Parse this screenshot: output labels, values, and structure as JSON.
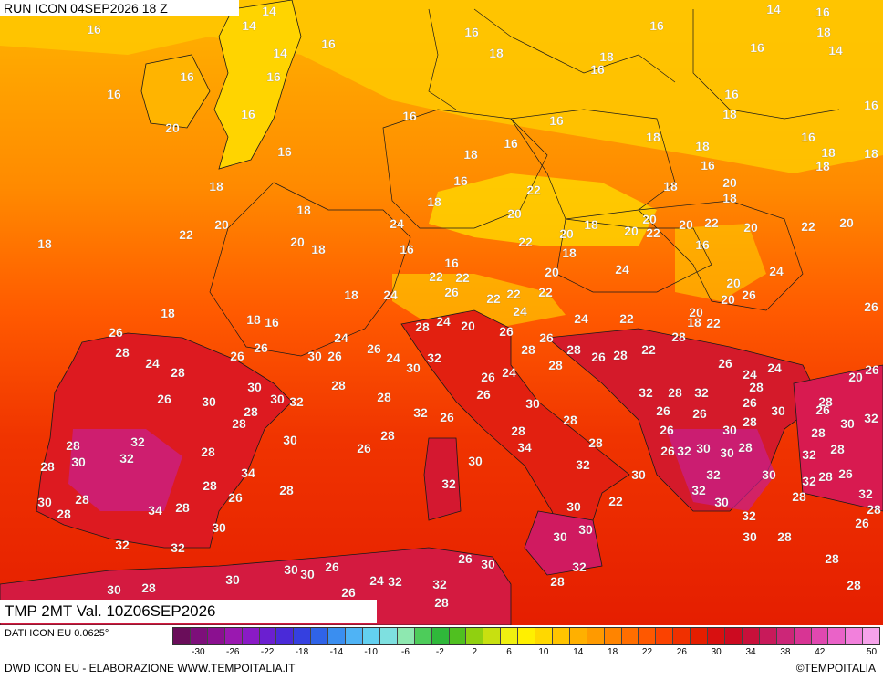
{
  "run_label": "RUN ICON 04SEP2026 18 Z",
  "validity_label": "TMP 2MT Val. 10Z06SEP2026",
  "data_source": "DATI ICON EU 0.0625°",
  "credit": "DWD ICON EU - ELABORAZIONE WWW.TEMPOITALIA.IT",
  "brand": "©TEMPOITALIA",
  "legend": {
    "tick_labels": [
      "-30",
      "-26",
      "-22",
      "-18",
      "-14",
      "-10",
      "-6",
      "-2",
      "2",
      "6",
      "10",
      "14",
      "18",
      "22",
      "26",
      "30",
      "34",
      "38",
      "42",
      "50"
    ],
    "colors": [
      "#6a0d5a",
      "#7d0f7a",
      "#8b1090",
      "#9a18b0",
      "#8a1ac6",
      "#6b1fd0",
      "#4a2ad8",
      "#3540e0",
      "#2f63e8",
      "#3a8ef0",
      "#4fb3f5",
      "#63d0f0",
      "#7ee0e0",
      "#8ee8b0",
      "#4dcc5a",
      "#2fb83a",
      "#50c020",
      "#90d010",
      "#c8e010",
      "#f0f010",
      "#fff000",
      "#ffd800",
      "#ffc400",
      "#ffb000",
      "#ff9a00",
      "#ff8400",
      "#ff6e00",
      "#ff5800",
      "#fb4200",
      "#f03000",
      "#e51e00",
      "#d81010",
      "#cc0a20",
      "#c8103a",
      "#c81a5a",
      "#cc2678",
      "#d83494",
      "#e048b0",
      "#ea62c8",
      "#f280dc",
      "#f6a2ea"
    ]
  },
  "temperature_labels": [
    "14",
    "16",
    "14",
    "14",
    "16",
    "16",
    "14",
    "16",
    "18",
    "14",
    "16",
    "18",
    "18",
    "16",
    "16",
    "16",
    "16",
    "16",
    "16",
    "16",
    "16",
    "20",
    "16",
    "16",
    "18",
    "18",
    "16",
    "16",
    "18",
    "18",
    "18",
    "16",
    "18",
    "16",
    "18",
    "18",
    "16",
    "18",
    "20",
    "22",
    "18",
    "18",
    "18",
    "20",
    "20",
    "18",
    "20",
    "20",
    "20",
    "22",
    "22",
    "20",
    "24",
    "22",
    "20",
    "22",
    "20",
    "16",
    "18",
    "20",
    "22",
    "18",
    "16",
    "18",
    "24",
    "20",
    "16",
    "24",
    "22",
    "22",
    "24",
    "22",
    "26",
    "22",
    "20",
    "22",
    "26",
    "26",
    "18",
    "18",
    "18",
    "16",
    "24",
    "20",
    "20",
    "18",
    "24",
    "22",
    "22",
    "24",
    "20",
    "28",
    "26",
    "26",
    "28",
    "24",
    "26",
    "28",
    "26",
    "26",
    "28",
    "28",
    "26",
    "30",
    "26",
    "24",
    "30",
    "32",
    "26",
    "28",
    "22",
    "24",
    "28",
    "28",
    "26",
    "24",
    "24",
    "26",
    "20",
    "26",
    "24",
    "28",
    "26",
    "30",
    "32",
    "32",
    "30",
    "30",
    "26",
    "28",
    "30",
    "32",
    "28",
    "28",
    "26",
    "28",
    "26",
    "30",
    "26",
    "28",
    "28",
    "26",
    "30",
    "32",
    "28",
    "28",
    "26",
    "30",
    "28",
    "28",
    "32",
    "26",
    "26",
    "30",
    "28",
    "32",
    "34",
    "28",
    "28",
    "26",
    "32",
    "30",
    "30",
    "28",
    "28",
    "32",
    "32",
    "28",
    "28",
    "30",
    "30",
    "34",
    "32",
    "32",
    "30",
    "28",
    "26",
    "30",
    "32",
    "28",
    "32",
    "28",
    "32",
    "28",
    "28",
    "26",
    "28",
    "34",
    "22",
    "30",
    "32",
    "28",
    "30",
    "28",
    "30",
    "32",
    "30",
    "26",
    "30",
    "30",
    "28",
    "32",
    "32",
    "30",
    "28",
    "26",
    "30",
    "32",
    "30",
    "30",
    "26",
    "24",
    "32",
    "26",
    "32",
    "28",
    "28",
    "30",
    "28",
    "30",
    "28",
    "32",
    "28",
    "28",
    "24",
    "32",
    "28",
    "26",
    "28",
    "34",
    "26",
    "32",
    "32",
    "32",
    "28",
    "30",
    "32",
    "28",
    "30",
    "28",
    "28",
    "30",
    "28"
  ]
}
